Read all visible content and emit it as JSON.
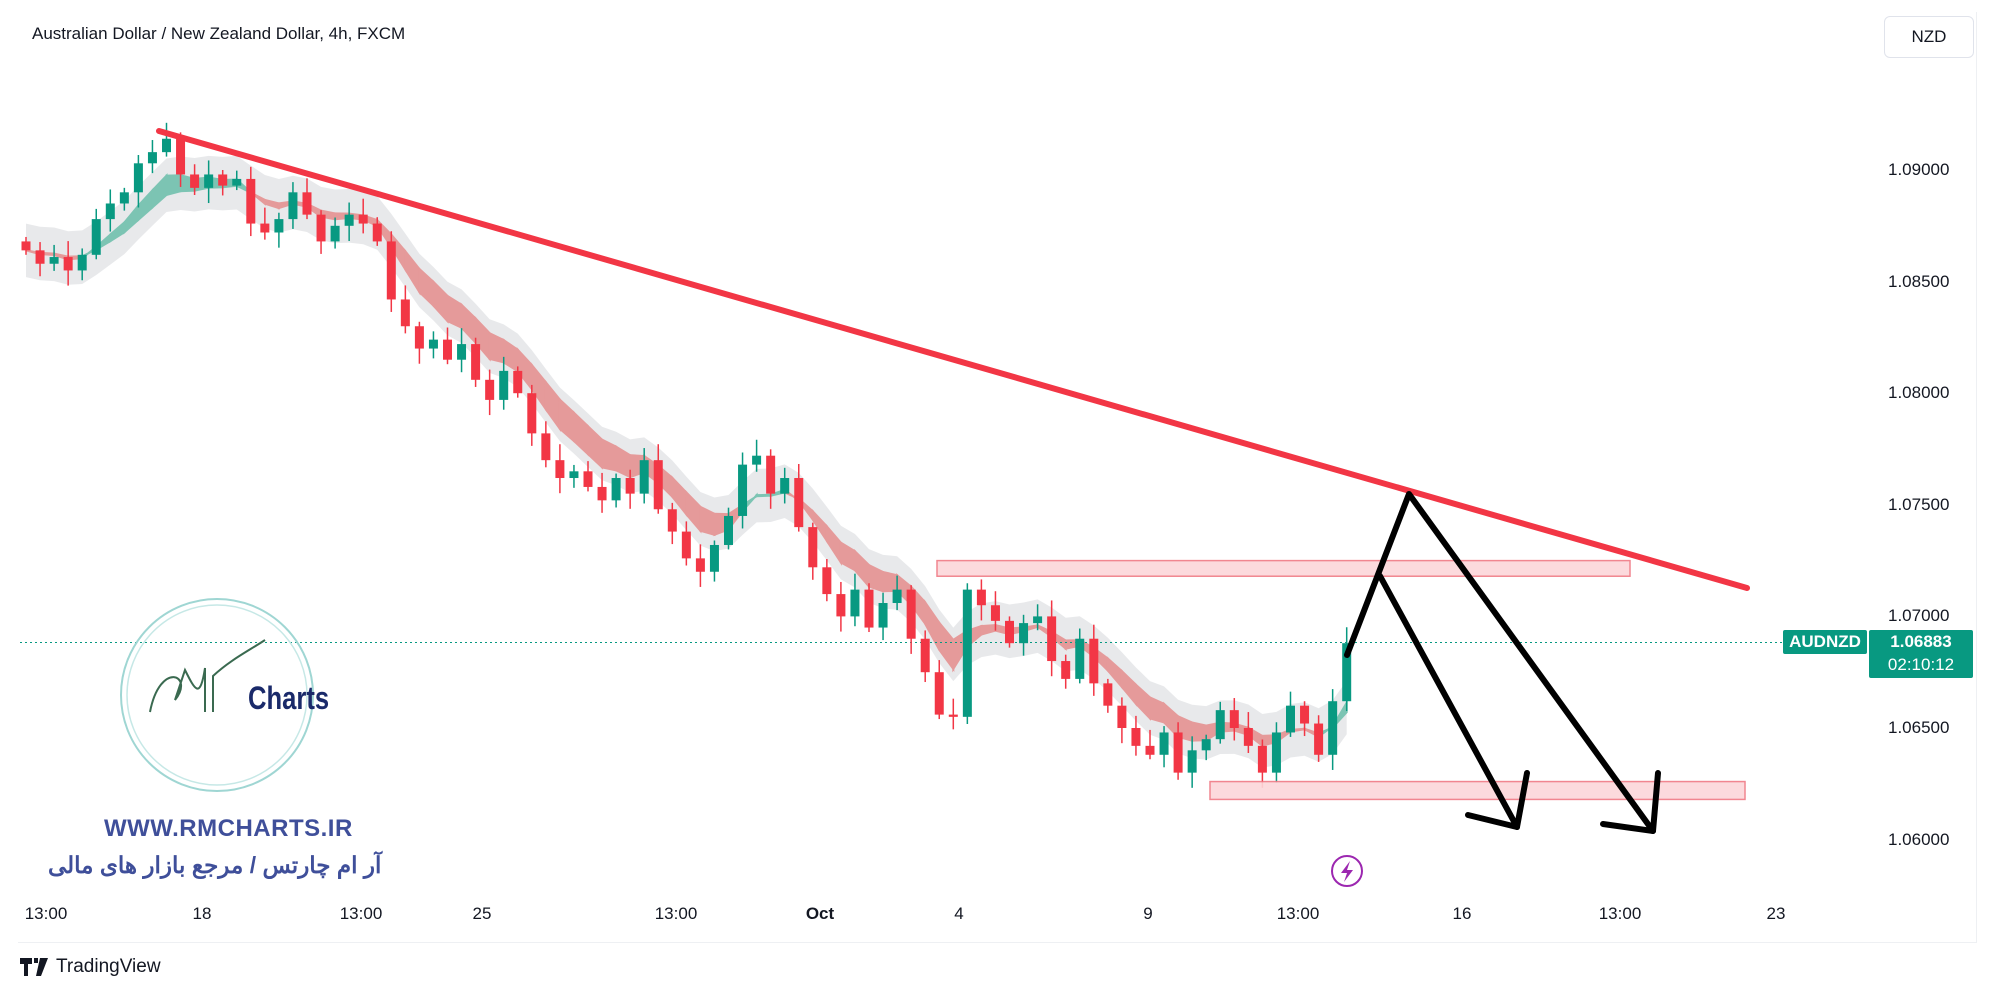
{
  "header": {
    "title": "Australian Dollar / New Zealand Dollar, 4h, FXCM",
    "currency_button": "NZD"
  },
  "price_axis": {
    "labels": [
      "1.09000",
      "1.08500",
      "1.08000",
      "1.07500",
      "1.07000",
      "1.06500",
      "1.06000"
    ]
  },
  "time_axis": {
    "labels": [
      "13:00",
      "18",
      "13:00",
      "25",
      "13:00",
      "Oct",
      "4",
      "9",
      "13:00",
      "16",
      "13:00",
      "23"
    ]
  },
  "current_price": {
    "symbol": "AUDNZD",
    "price": "1.06883",
    "countdown": "02:10:12",
    "color": "#089981"
  },
  "watermark": {
    "logo_text": "RM Charts",
    "url": "WWW.RMCHARTS.IR",
    "tagline": "آر ام چارتس / مرجع بازار های مالی"
  },
  "footer": {
    "brand": "TradingView"
  },
  "colors": {
    "up": "#089981",
    "down": "#f23645",
    "trendline": "#f23645",
    "zone_fill": "#fcd7da",
    "arrows": "#000000"
  },
  "chart_data": {
    "type": "candlestick",
    "title": "Australian Dollar / New Zealand Dollar, 4h, FXCM",
    "ylim": [
      1.0585,
      1.0965
    ],
    "yticks": [
      1.09,
      1.085,
      1.08,
      1.075,
      1.07,
      1.065,
      1.06
    ],
    "closes": [
      1.0864,
      1.0858,
      1.0861,
      1.0855,
      1.0862,
      1.0878,
      1.0885,
      1.089,
      1.0903,
      1.0908,
      1.0914,
      1.0898,
      1.0892,
      1.0898,
      1.0893,
      1.0896,
      1.0876,
      1.0872,
      1.0878,
      1.089,
      1.088,
      1.0868,
      1.0875,
      1.088,
      1.0876,
      1.0868,
      1.0842,
      1.083,
      1.082,
      1.0824,
      1.0815,
      1.0822,
      1.0806,
      1.0797,
      1.081,
      1.08,
      1.0782,
      1.077,
      1.0762,
      1.0765,
      1.0758,
      1.0752,
      1.0762,
      1.0755,
      1.077,
      1.0748,
      1.0738,
      1.0726,
      1.072,
      1.0732,
      1.0745,
      1.0768,
      1.0772,
      1.0755,
      1.0762,
      1.074,
      1.0722,
      1.071,
      1.07,
      1.0712,
      1.0695,
      1.0706,
      1.0712,
      1.069,
      1.0675,
      1.0656,
      1.0655,
      1.0712,
      1.0705,
      1.0698,
      1.0688,
      1.0697,
      1.07,
      1.068,
      1.0672,
      1.069,
      1.067,
      1.066,
      1.065,
      1.0642,
      1.0638,
      1.0648,
      1.063,
      1.064,
      1.0645,
      1.0658,
      1.065,
      1.0642,
      1.063,
      1.0648,
      1.066,
      1.0652,
      1.0638,
      1.0662,
      1.0688
    ],
    "last_price": 1.06883,
    "resistance_zone": [
      1.0718,
      1.0725
    ],
    "support_zone": [
      1.0618,
      1.0626
    ]
  }
}
